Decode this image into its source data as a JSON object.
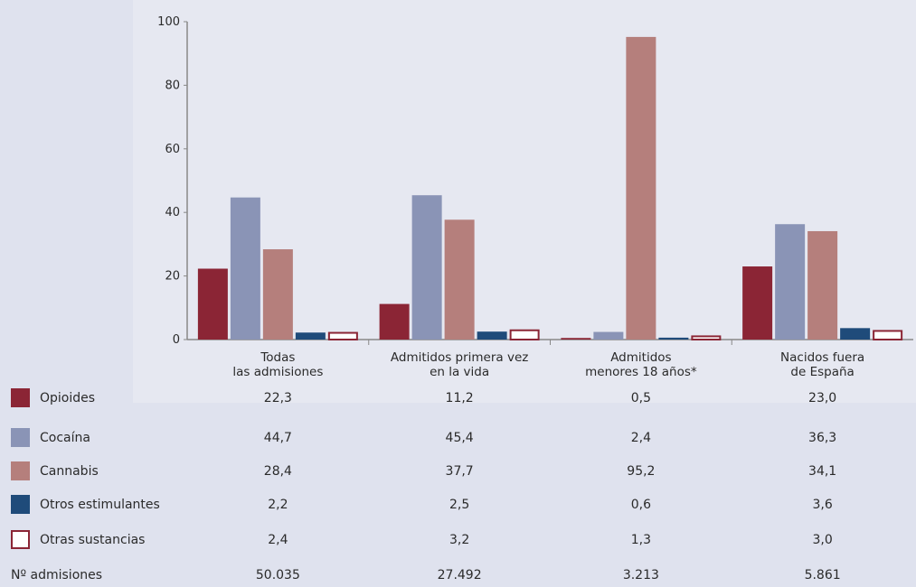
{
  "colors": {
    "Opioides": "#8b2535",
    "Cocaína": "#8a94b6",
    "Cannabis": "#b57f7c",
    "Otros estimulantes": "#1f4b7a",
    "Otras sustancias": "#ffffff",
    "outline": "#8b2535",
    "axis": "#888888",
    "background": "#dfe2ee"
  },
  "chart_data": {
    "type": "bar",
    "title": "",
    "xlabel": "",
    "ylabel": "",
    "ylim": [
      0,
      100
    ],
    "yticks": [
      0,
      20,
      40,
      60,
      80,
      100
    ],
    "grid": false,
    "legend": "table-left",
    "categories": [
      [
        "Todas",
        "las admisiones"
      ],
      [
        "Admitidos primera vez",
        "en la vida"
      ],
      [
        "Admitidos",
        "menores 18 años*"
      ],
      [
        "Nacidos fuera",
        "de España"
      ]
    ],
    "series": [
      {
        "name": "Opioides",
        "values": [
          22.3,
          11.2,
          0.5,
          23.0
        ],
        "labels": [
          "22,3",
          "11,2",
          "0,5",
          "23,0"
        ]
      },
      {
        "name": "Cocaína",
        "values": [
          44.7,
          45.4,
          2.4,
          36.3
        ],
        "labels": [
          "44,7",
          "45,4",
          "2,4",
          "36,3"
        ]
      },
      {
        "name": "Cannabis",
        "values": [
          28.4,
          37.7,
          95.2,
          34.1
        ],
        "labels": [
          "28,4",
          "37,7",
          "95,2",
          "34,1"
        ]
      },
      {
        "name": "Otros estimulantes",
        "values": [
          2.2,
          2.5,
          0.6,
          3.6
        ],
        "labels": [
          "2,2",
          "2,5",
          "0,6",
          "3,6"
        ]
      },
      {
        "name": "Otras sustancias",
        "values": [
          2.4,
          3.2,
          1.3,
          3.0
        ],
        "labels": [
          "2,4",
          "3,2",
          "1,3",
          "3,0"
        ]
      }
    ],
    "admissions": {
      "label": "Nº admisiones",
      "values": [
        "50.035",
        "27.492",
        "3.213",
        "5.861"
      ]
    }
  }
}
